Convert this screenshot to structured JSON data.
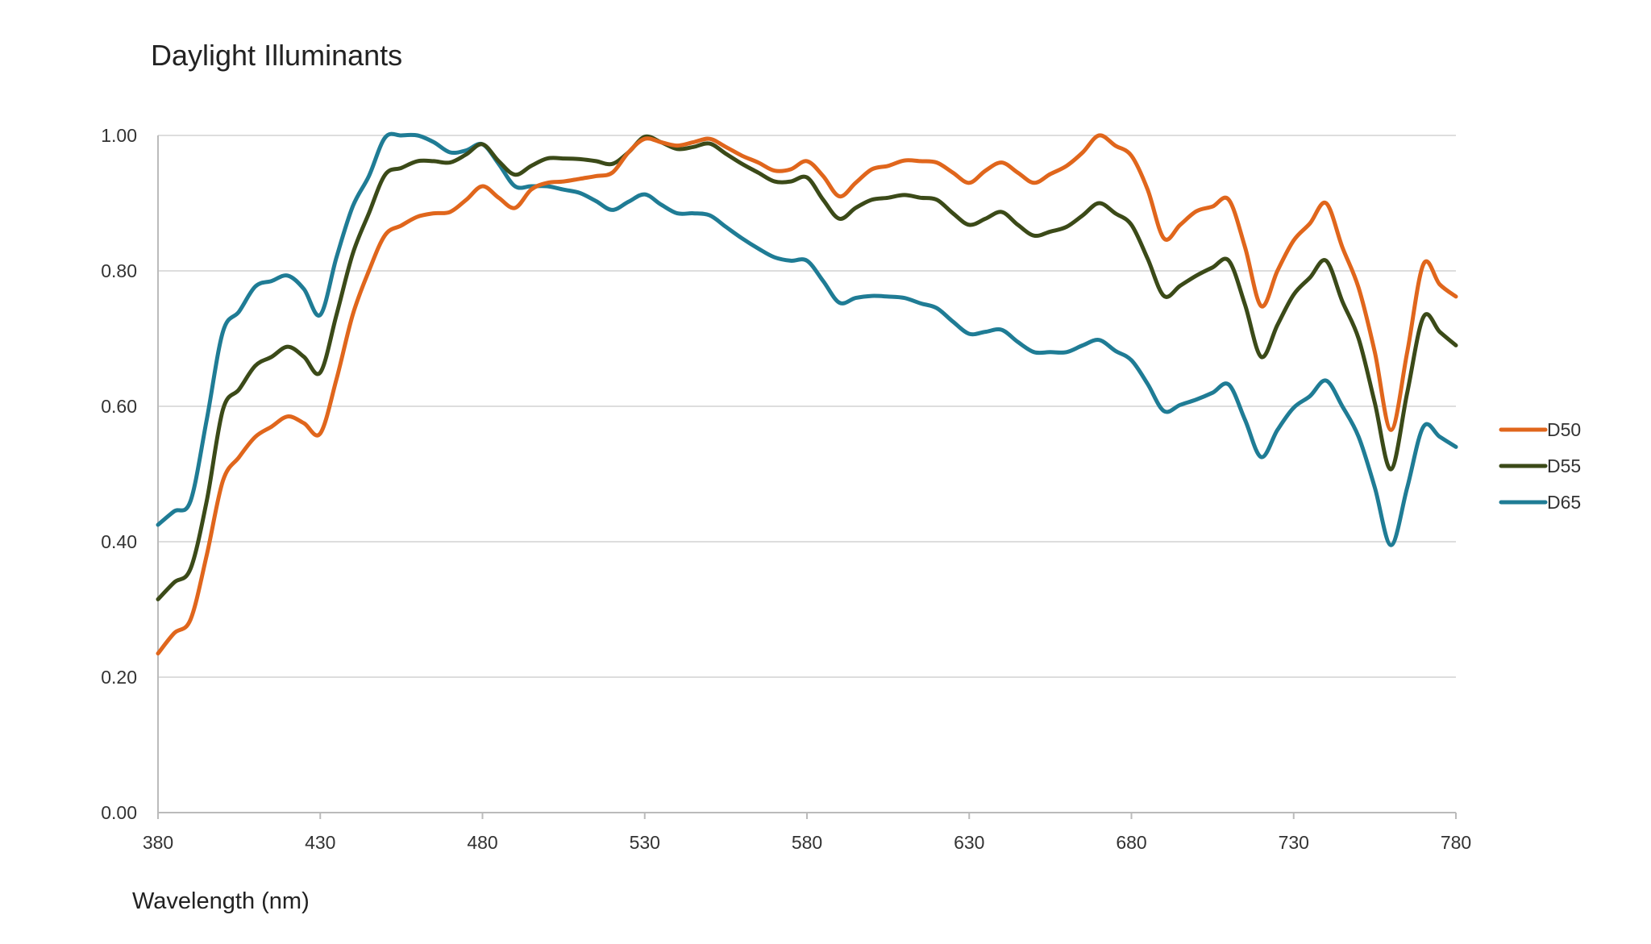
{
  "chart_data": {
    "type": "line",
    "title": "Daylight Illuminants",
    "xlabel": "Wavelength (nm)",
    "ylabel": "",
    "xlim": [
      380,
      780
    ],
    "ylim": [
      0,
      1
    ],
    "x_ticks": [
      "380",
      "430",
      "480",
      "530",
      "580",
      "630",
      "680",
      "730",
      "780"
    ],
    "y_ticks": [
      "0.00",
      "0.20",
      "0.40",
      "0.60",
      "0.80",
      "1.00"
    ],
    "grid": true,
    "legend_position": "right",
    "x": [
      380,
      385,
      390,
      395,
      400,
      405,
      410,
      415,
      420,
      425,
      430,
      435,
      440,
      445,
      450,
      455,
      460,
      465,
      470,
      475,
      480,
      485,
      490,
      495,
      500,
      505,
      510,
      515,
      520,
      525,
      530,
      535,
      540,
      545,
      550,
      555,
      560,
      565,
      570,
      575,
      580,
      585,
      590,
      595,
      600,
      605,
      610,
      615,
      620,
      625,
      630,
      635,
      640,
      645,
      650,
      655,
      660,
      665,
      670,
      675,
      680,
      685,
      690,
      695,
      700,
      705,
      710,
      715,
      720,
      725,
      730,
      735,
      740,
      745,
      750,
      755,
      760,
      765,
      770,
      775,
      780
    ],
    "series": [
      {
        "name": "D50",
        "color": "#e0661c",
        "values": [
          0.235,
          0.265,
          0.285,
          0.38,
          0.49,
          0.525,
          0.555,
          0.57,
          0.585,
          0.575,
          0.56,
          0.64,
          0.735,
          0.8,
          0.853,
          0.867,
          0.88,
          0.885,
          0.887,
          0.905,
          0.925,
          0.908,
          0.893,
          0.92,
          0.93,
          0.932,
          0.936,
          0.94,
          0.945,
          0.975,
          0.995,
          0.99,
          0.985,
          0.99,
          0.995,
          0.983,
          0.97,
          0.96,
          0.948,
          0.95,
          0.962,
          0.94,
          0.91,
          0.93,
          0.95,
          0.955,
          0.963,
          0.962,
          0.96,
          0.945,
          0.93,
          0.948,
          0.96,
          0.945,
          0.93,
          0.943,
          0.955,
          0.975,
          1.0,
          0.985,
          0.97,
          0.92,
          0.848,
          0.868,
          0.888,
          0.895,
          0.905,
          0.835,
          0.748,
          0.8,
          0.845,
          0.87,
          0.9,
          0.835,
          0.775,
          0.68,
          0.565,
          0.68,
          0.81,
          0.78,
          0.762
        ]
      },
      {
        "name": "D55",
        "color": "#3b4a18",
        "values": [
          0.315,
          0.34,
          0.36,
          0.46,
          0.595,
          0.625,
          0.66,
          0.673,
          0.688,
          0.673,
          0.65,
          0.735,
          0.825,
          0.885,
          0.942,
          0.952,
          0.962,
          0.962,
          0.96,
          0.972,
          0.987,
          0.962,
          0.942,
          0.955,
          0.966,
          0.966,
          0.965,
          0.962,
          0.958,
          0.975,
          0.998,
          0.99,
          0.98,
          0.983,
          0.988,
          0.973,
          0.958,
          0.945,
          0.932,
          0.932,
          0.938,
          0.905,
          0.877,
          0.893,
          0.905,
          0.908,
          0.912,
          0.908,
          0.905,
          0.885,
          0.868,
          0.877,
          0.887,
          0.868,
          0.852,
          0.858,
          0.865,
          0.882,
          0.9,
          0.885,
          0.868,
          0.818,
          0.763,
          0.778,
          0.793,
          0.805,
          0.815,
          0.75,
          0.673,
          0.72,
          0.765,
          0.79,
          0.815,
          0.755,
          0.7,
          0.605,
          0.507,
          0.62,
          0.732,
          0.71,
          0.69
        ]
      },
      {
        "name": "D65",
        "color": "#1f7c95",
        "values": [
          0.425,
          0.445,
          0.46,
          0.58,
          0.71,
          0.74,
          0.777,
          0.785,
          0.793,
          0.773,
          0.735,
          0.82,
          0.895,
          0.94,
          0.997,
          1.0,
          1.0,
          0.99,
          0.975,
          0.978,
          0.987,
          0.958,
          0.925,
          0.925,
          0.925,
          0.92,
          0.915,
          0.903,
          0.89,
          0.902,
          0.913,
          0.898,
          0.885,
          0.885,
          0.882,
          0.865,
          0.848,
          0.833,
          0.82,
          0.815,
          0.815,
          0.785,
          0.753,
          0.76,
          0.763,
          0.762,
          0.76,
          0.752,
          0.745,
          0.725,
          0.707,
          0.71,
          0.713,
          0.695,
          0.68,
          0.68,
          0.68,
          0.69,
          0.698,
          0.682,
          0.668,
          0.633,
          0.593,
          0.602,
          0.61,
          0.62,
          0.632,
          0.58,
          0.525,
          0.565,
          0.598,
          0.615,
          0.638,
          0.6,
          0.555,
          0.48,
          0.395,
          0.48,
          0.57,
          0.555,
          0.54
        ]
      }
    ]
  }
}
